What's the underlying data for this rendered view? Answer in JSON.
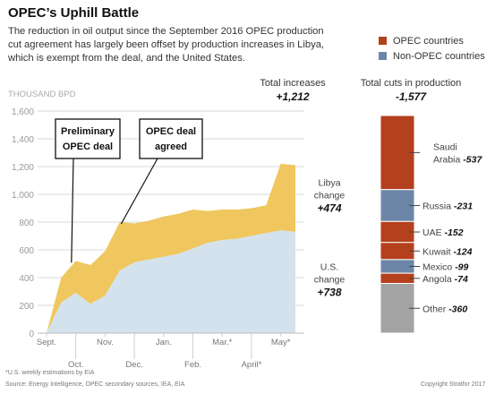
{
  "title": "OPEC’s Uphill Battle",
  "subtitle": "The reduction in oil output since the September 2016 OPEC production cut agreement has largely been offset by production increases in Libya, which is exempt from the deal, and the United States.",
  "legend": [
    {
      "label": "OPEC countries",
      "color": "#b5401e"
    },
    {
      "label": "Non-OPEC countries",
      "color": "#6d86a8"
    }
  ],
  "footnote": "*U.S. weekly estimations by EIA",
  "source": "Source: Energy Intelligence, OPEC secondary sources, IEA, EIA",
  "copyright": "Copyright Stratfor 2017",
  "colors": {
    "libya": "#f0c75e",
    "us": "#d4e2ee",
    "opec": "#b5401e",
    "nonopec": "#6d86a8",
    "other": "#a3a3a3",
    "grid": "#d9d9d9"
  },
  "chart_data": [
    {
      "type": "area",
      "ylabel": "THOUSAND BPD",
      "ylim": [
        0,
        1600
      ],
      "yticks": [
        0,
        200,
        400,
        600,
        800,
        1000,
        1200,
        1400,
        1600
      ],
      "ytick_labels": [
        "0",
        "200",
        "400",
        "600",
        "800",
        "1,000",
        "1,200",
        "1,400",
        "1,600"
      ],
      "x_tick_labels": [
        "Sept.",
        "Oct.",
        "Nov.",
        "Dec.",
        "Jan.",
        "Feb.",
        "Mar.*",
        "April*",
        "May*"
      ],
      "x_tick_rows": [
        0,
        1,
        0,
        1,
        0,
        1,
        0,
        1,
        0
      ],
      "x": [
        0,
        0.5,
        1,
        1.5,
        2,
        2.5,
        3,
        3.5,
        4,
        4.5,
        5,
        5.5,
        6,
        6.5,
        7,
        7.5,
        8,
        8.5
      ],
      "series": [
        {
          "name": "U.S. change",
          "values": [
            0,
            220,
            290,
            210,
            270,
            450,
            510,
            530,
            550,
            570,
            610,
            650,
            670,
            680,
            700,
            720,
            740,
            730
          ]
        },
        {
          "name": "Libya change",
          "values": [
            0,
            180,
            230,
            280,
            320,
            350,
            280,
            280,
            290,
            290,
            280,
            230,
            220,
            210,
            200,
            200,
            480,
            480
          ]
        }
      ],
      "totals_label": "Total increases",
      "totals_value": "+1,212",
      "series_labels": [
        {
          "name": "Libya",
          "name2": "change",
          "value": "+474"
        },
        {
          "name": "U.S.",
          "name2": "change",
          "value": "+738"
        }
      ],
      "annotations": [
        {
          "line1": "Preliminary",
          "line2": "OPEC deal"
        },
        {
          "line1": "OPEC deal",
          "line2": "agreed"
        }
      ]
    },
    {
      "type": "bar",
      "stacked": true,
      "totals_label": "Total cuts in production",
      "totals_value": "-1,577",
      "segments": [
        {
          "name": "Saudi",
          "name2": "Arabia",
          "value": -537,
          "label": "-537",
          "group": "opec"
        },
        {
          "name": "Russia",
          "value": -231,
          "label": "-231",
          "group": "nonopec"
        },
        {
          "name": "UAE",
          "value": -152,
          "label": "-152",
          "group": "opec"
        },
        {
          "name": "Kuwait",
          "value": -124,
          "label": "-124",
          "group": "opec"
        },
        {
          "name": "Mexico",
          "value": -99,
          "label": "-99",
          "group": "nonopec"
        },
        {
          "name": "Angola",
          "value": -74,
          "label": "-74",
          "group": "opec"
        },
        {
          "name": "Other",
          "value": -360,
          "label": "-360",
          "group": "other"
        }
      ]
    }
  ]
}
